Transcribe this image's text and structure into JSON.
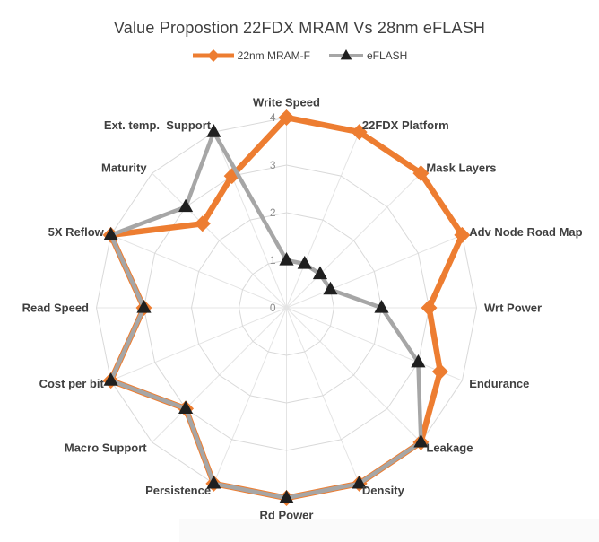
{
  "title": "Value Propostion 22FDX MRAM Vs 28nm eFLASH",
  "chart_data": {
    "type": "radar",
    "title": "Value Propostion 22FDX MRAM Vs 28nm eFLASH",
    "categories": [
      "Write Speed",
      "22FDX Platform",
      "Mask Layers",
      "Adv Node Road Map",
      "Wrt Power",
      "Endurance",
      "Leakage",
      "Density",
      "Rd Power",
      "Persistence",
      "Macro Support",
      "Cost per bit",
      "Read Speed",
      "5X Reflow",
      "Maturity",
      "Ext. temp.  Support"
    ],
    "series": [
      {
        "name": "22nm MRAM-F",
        "values": [
          4,
          4,
          4,
          4,
          3,
          3.5,
          4,
          4,
          4,
          4,
          3,
          4,
          3,
          4,
          2.5,
          3
        ],
        "line_color": "#ED7D31",
        "marker": "diamond",
        "marker_color": "#ED7D31"
      },
      {
        "name": "eFLASH",
        "values": [
          1,
          1,
          1,
          1,
          2,
          3,
          4,
          4,
          4,
          4,
          3,
          4,
          3,
          4,
          3,
          4
        ],
        "line_color": "#A6A6A6",
        "marker": "triangle",
        "marker_color": "#1F1F1F"
      }
    ],
    "r_axis": {
      "min": 0,
      "max": 4,
      "ticks": [
        "0",
        "1",
        "2",
        "3",
        "4"
      ],
      "tick_color": "#8C8C8C"
    },
    "grid": {
      "rings": [
        1,
        2,
        3,
        4
      ],
      "ring_color": "#D9D9D9",
      "spoke_color": "#E4E4E4"
    },
    "legend_position": "top",
    "category_label_color": "#3F3F3F"
  }
}
